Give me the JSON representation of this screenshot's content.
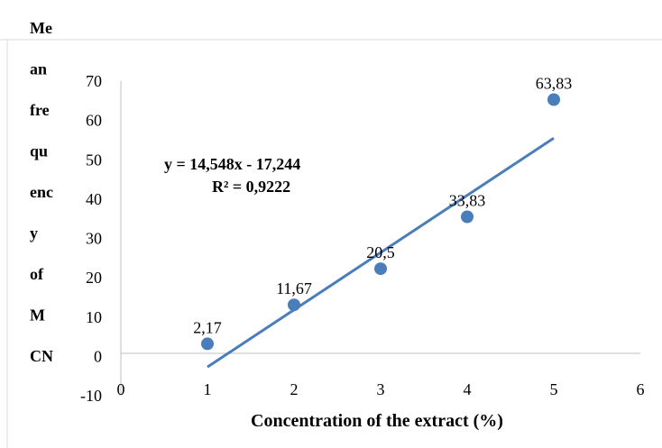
{
  "chart_data": {
    "type": "scatter",
    "ylabel_lines": [
      "Me",
      "an",
      "fre",
      "qu",
      "enc",
      "y",
      "of",
      "M",
      "CN"
    ],
    "xlabel": "Concentration of the extract (%)",
    "xlim": [
      0,
      6
    ],
    "ylim": [
      -10,
      70
    ],
    "x_ticks": [
      "0",
      "1",
      "2",
      "3",
      "4",
      "5",
      "6"
    ],
    "y_ticks": [
      "-10",
      "0",
      "10",
      "20",
      "30",
      "40",
      "50",
      "60",
      "70"
    ],
    "series": [
      {
        "x": [
          1,
          2,
          3,
          4,
          5
        ],
        "y": [
          3.2,
          13.1,
          22.3,
          35.5,
          65.3
        ],
        "labels": [
          "2,17",
          "11,67",
          "20,5",
          "33,83",
          "63,83"
        ],
        "color": "#4a7ebb"
      }
    ],
    "trendline": {
      "slope": 14.548,
      "intercept": -17.244,
      "x_range": [
        1,
        5
      ],
      "color": "#4a7ebb",
      "equation": "y = 14,548x - 17,244",
      "r2": "R² = 0,9222"
    },
    "legend": "none",
    "grid": false
  }
}
